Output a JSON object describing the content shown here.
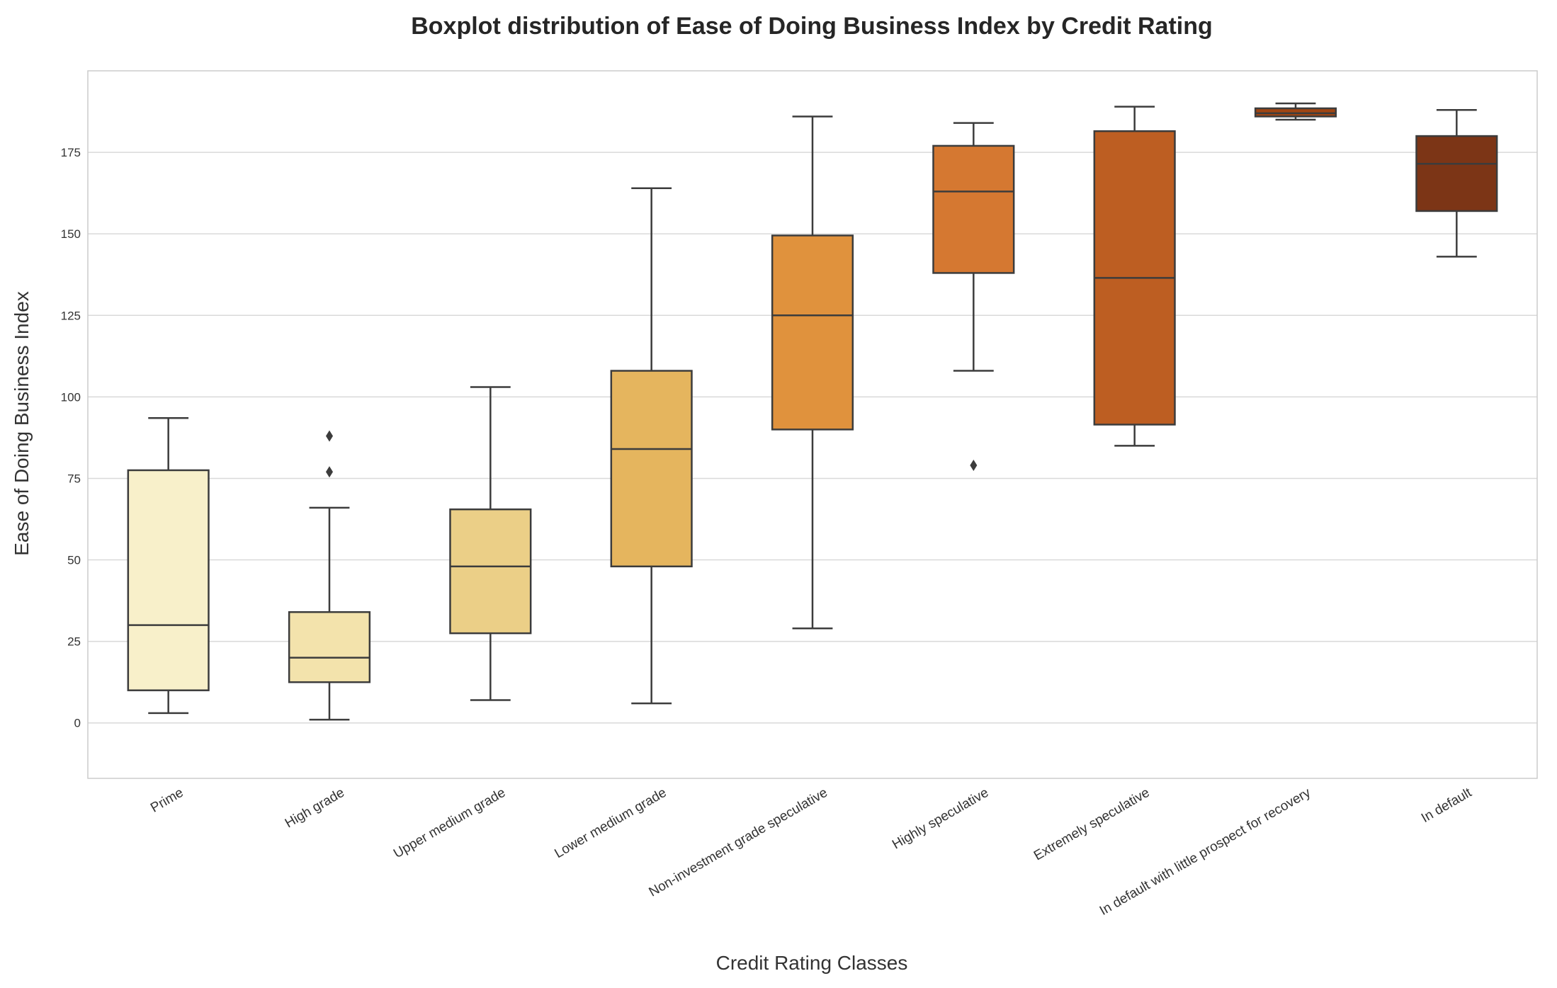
{
  "chart_data": {
    "type": "boxplot",
    "title": "Boxplot distribution of Ease of Doing Business Index by Credit Rating",
    "xlabel": "Credit Rating Classes",
    "ylabel": "Ease of Doing Business Index",
    "ylim": [
      -17,
      200
    ],
    "yticks": [
      0,
      25,
      50,
      75,
      100,
      125,
      150,
      175
    ],
    "grid": "horizontal",
    "categories": [
      "Prime",
      "High grade",
      "Upper medium grade",
      "Lower medium grade",
      "Non-investment grade speculative",
      "Highly speculative",
      "Extremely speculative",
      "In default with little prospect for recovery",
      "In default"
    ],
    "boxes": [
      {
        "whisker_low": 3,
        "q1": 10,
        "median": 30,
        "q3": 77.5,
        "whisker_high": 93.5,
        "outliers": [],
        "color": "#f8f0ca"
      },
      {
        "whisker_low": 1,
        "q1": 12.5,
        "median": 20,
        "q3": 34,
        "whisker_high": 66,
        "outliers": [
          77,
          88
        ],
        "color": "#f3e3ac"
      },
      {
        "whisker_low": 7,
        "q1": 27.5,
        "median": 48,
        "q3": 65.5,
        "whisker_high": 103,
        "outliers": [],
        "color": "#ebcf87"
      },
      {
        "whisker_low": 6,
        "q1": 48,
        "median": 84,
        "q3": 108,
        "whisker_high": 164,
        "outliers": [],
        "color": "#e5b55e"
      },
      {
        "whisker_low": 29,
        "q1": 90,
        "median": 125,
        "q3": 149.5,
        "whisker_high": 186,
        "outliers": [],
        "color": "#e0923d"
      },
      {
        "whisker_low": 108,
        "q1": 138,
        "median": 163,
        "q3": 177,
        "whisker_high": 184,
        "outliers": [
          79
        ],
        "color": "#d57831"
      },
      {
        "whisker_low": 85,
        "q1": 91.5,
        "median": 136.5,
        "q3": 181.5,
        "whisker_high": 189,
        "outliers": [],
        "color": "#bd5e22"
      },
      {
        "whisker_low": 185,
        "q1": 186,
        "median": 187,
        "q3": 188.5,
        "whisker_high": 190,
        "outliers": [],
        "color": "#a04513"
      },
      {
        "whisker_low": 143,
        "q1": 157,
        "median": 171.5,
        "q3": 180,
        "whisker_high": 188,
        "outliers": [],
        "color": "#7c3516"
      }
    ],
    "colors": {
      "box_edge": "#3c3c3c",
      "grid": "#d9d9d9",
      "frame": "#cccccc"
    }
  }
}
